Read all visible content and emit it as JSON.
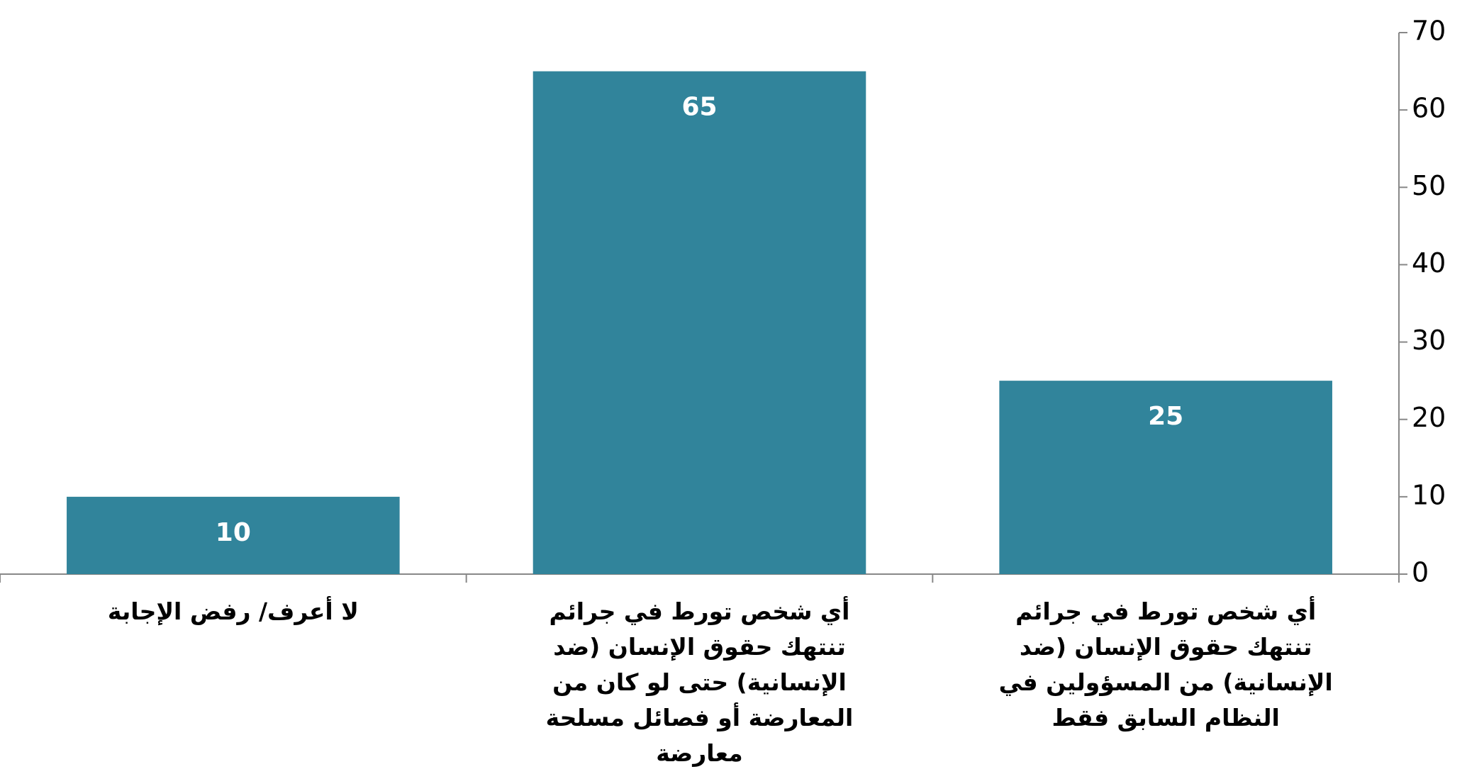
{
  "chart_data": {
    "type": "bar",
    "categories": [
      "أي شخص تورط في جرائم تنتهك حقوق الإنسان (ضد الإنسانية)  من المسؤولين في النظام السابق فقط",
      "أي شخص تورط في جرائم تنتهك حقوق الإنسان (ضد الإنسانية) حتى لو كان من المعارضة أو فصائل مسلحة معارضة",
      "لا أعرف/ رفض الإجابة"
    ],
    "values": [
      25,
      65,
      10
    ],
    "color": "#31849b",
    "ylim": [
      0,
      70
    ],
    "yticks": [
      0,
      10,
      20,
      30,
      40,
      50,
      60,
      70
    ],
    "grid": false
  }
}
